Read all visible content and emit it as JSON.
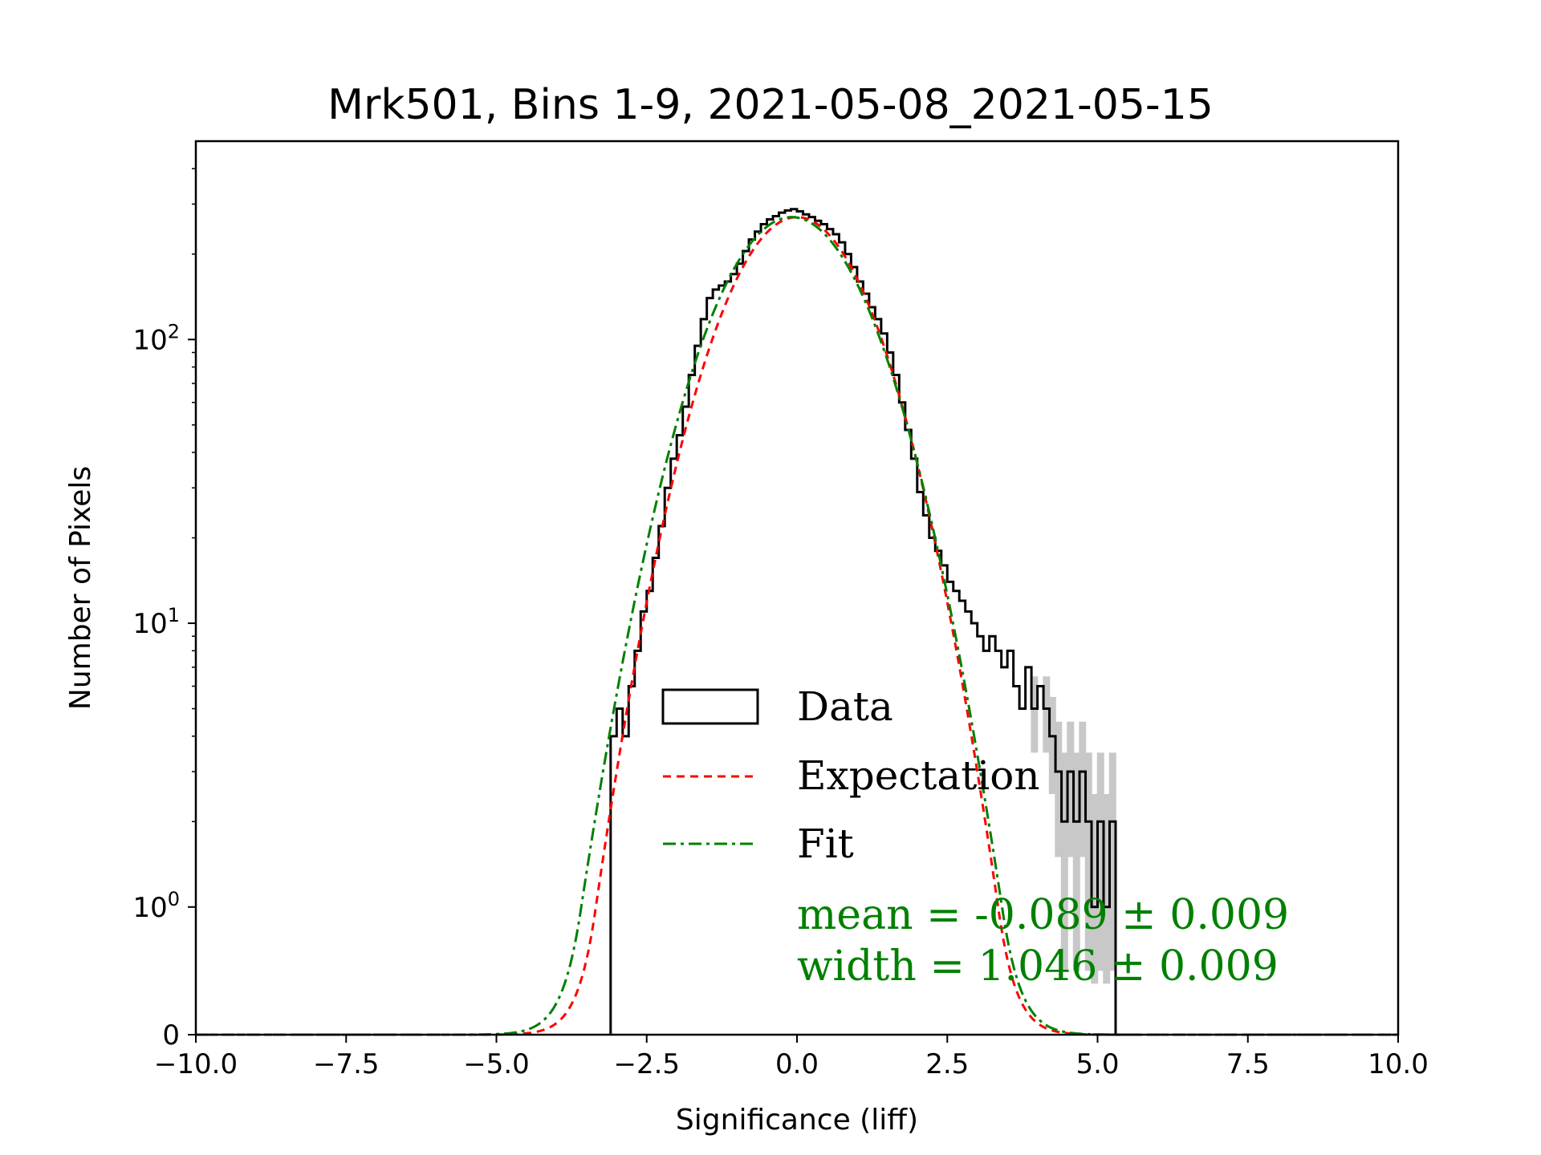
{
  "chart_data": {
    "type": "histogram",
    "title": "Mrk501, Bins 1-9, 2021-05-08_2021-05-15",
    "xlabel": "Significance (liff)",
    "ylabel": "Number of Pixels",
    "xlim": [
      -10,
      10
    ],
    "yscale": "symlog",
    "ylim": [
      0,
      500
    ],
    "x_ticks": [
      -10,
      -7.5,
      -5,
      -2.5,
      0,
      2.5,
      5,
      7.5,
      10
    ],
    "x_tick_labels": [
      "−10.0",
      "−7.5",
      "−5.0",
      "−2.5",
      "0.0",
      "2.5",
      "5.0",
      "7.5",
      "10.0"
    ],
    "y_ticks": [
      {
        "value": 0,
        "base": "0",
        "exp": ""
      },
      {
        "value": 1,
        "base": "10",
        "exp": "0"
      },
      {
        "value": 10,
        "base": "10",
        "exp": "1"
      },
      {
        "value": 100,
        "base": "10",
        "exp": "2"
      }
    ],
    "legend": {
      "placement": "center-right",
      "entries": [
        {
          "label": "Data",
          "style": "box",
          "color": "#000000"
        },
        {
          "label": "Expectation",
          "style": "dashed",
          "color": "#ff0000"
        },
        {
          "label": "Fit",
          "style": "dashdot",
          "color": "#008000"
        }
      ]
    },
    "annotations": {
      "mean": "mean = -0.089 ± 0.009",
      "width": "width = 1.046 ± 0.009"
    },
    "series": [
      {
        "name": "Expectation",
        "kind": "gaussian",
        "mean": 0.0,
        "sigma": 1.0,
        "peak": 270,
        "color": "#ff0000"
      },
      {
        "name": "Fit",
        "kind": "gaussian",
        "mean": -0.089,
        "sigma": 1.046,
        "peak": 270,
        "color": "#008000"
      },
      {
        "name": "Data",
        "kind": "histogram",
        "color": "#000000",
        "bins": [
          [
            -3.1,
            4
          ],
          [
            -3.0,
            5
          ],
          [
            -2.9,
            4
          ],
          [
            -2.8,
            6
          ],
          [
            -2.7,
            8
          ],
          [
            -2.6,
            11
          ],
          [
            -2.5,
            13
          ],
          [
            -2.4,
            17
          ],
          [
            -2.3,
            22
          ],
          [
            -2.2,
            30
          ],
          [
            -2.1,
            38
          ],
          [
            -2.0,
            46
          ],
          [
            -1.9,
            58
          ],
          [
            -1.8,
            75
          ],
          [
            -1.7,
            95
          ],
          [
            -1.6,
            118
          ],
          [
            -1.5,
            140
          ],
          [
            -1.4,
            150
          ],
          [
            -1.3,
            155
          ],
          [
            -1.2,
            160
          ],
          [
            -1.1,
            170
          ],
          [
            -1.0,
            185
          ],
          [
            -0.9,
            205
          ],
          [
            -0.8,
            225
          ],
          [
            -0.7,
            240
          ],
          [
            -0.6,
            255
          ],
          [
            -0.5,
            265
          ],
          [
            -0.4,
            272
          ],
          [
            -0.3,
            280
          ],
          [
            -0.2,
            285
          ],
          [
            -0.1,
            288
          ],
          [
            0.0,
            283
          ],
          [
            0.1,
            276
          ],
          [
            0.2,
            270
          ],
          [
            0.3,
            262
          ],
          [
            0.4,
            255
          ],
          [
            0.5,
            245
          ],
          [
            0.6,
            235
          ],
          [
            0.7,
            220
          ],
          [
            0.8,
            200
          ],
          [
            0.9,
            180
          ],
          [
            1.0,
            160
          ],
          [
            1.1,
            145
          ],
          [
            1.2,
            130
          ],
          [
            1.3,
            118
          ],
          [
            1.4,
            105
          ],
          [
            1.5,
            90
          ],
          [
            1.6,
            75
          ],
          [
            1.7,
            60
          ],
          [
            1.8,
            48
          ],
          [
            1.9,
            38
          ],
          [
            2.0,
            29
          ],
          [
            2.1,
            24
          ],
          [
            2.2,
            20
          ],
          [
            2.3,
            18
          ],
          [
            2.4,
            16
          ],
          [
            2.5,
            14
          ],
          [
            2.6,
            13
          ],
          [
            2.7,
            12
          ],
          [
            2.8,
            11
          ],
          [
            2.9,
            10
          ],
          [
            3.0,
            9
          ],
          [
            3.1,
            8
          ],
          [
            3.2,
            9
          ],
          [
            3.3,
            8
          ],
          [
            3.4,
            7
          ],
          [
            3.5,
            8
          ],
          [
            3.6,
            6
          ],
          [
            3.7,
            5
          ],
          [
            3.8,
            7
          ],
          [
            3.9,
            5
          ],
          [
            4.0,
            6
          ],
          [
            4.1,
            5
          ],
          [
            4.2,
            4
          ],
          [
            4.3,
            3
          ],
          [
            4.4,
            2
          ],
          [
            4.5,
            3
          ],
          [
            4.6,
            2
          ],
          [
            4.7,
            3
          ],
          [
            4.8,
            2
          ],
          [
            4.9,
            1
          ],
          [
            5.0,
            2
          ],
          [
            5.1,
            1
          ],
          [
            5.2,
            2
          ],
          [
            5.3,
            0
          ]
        ]
      }
    ]
  }
}
